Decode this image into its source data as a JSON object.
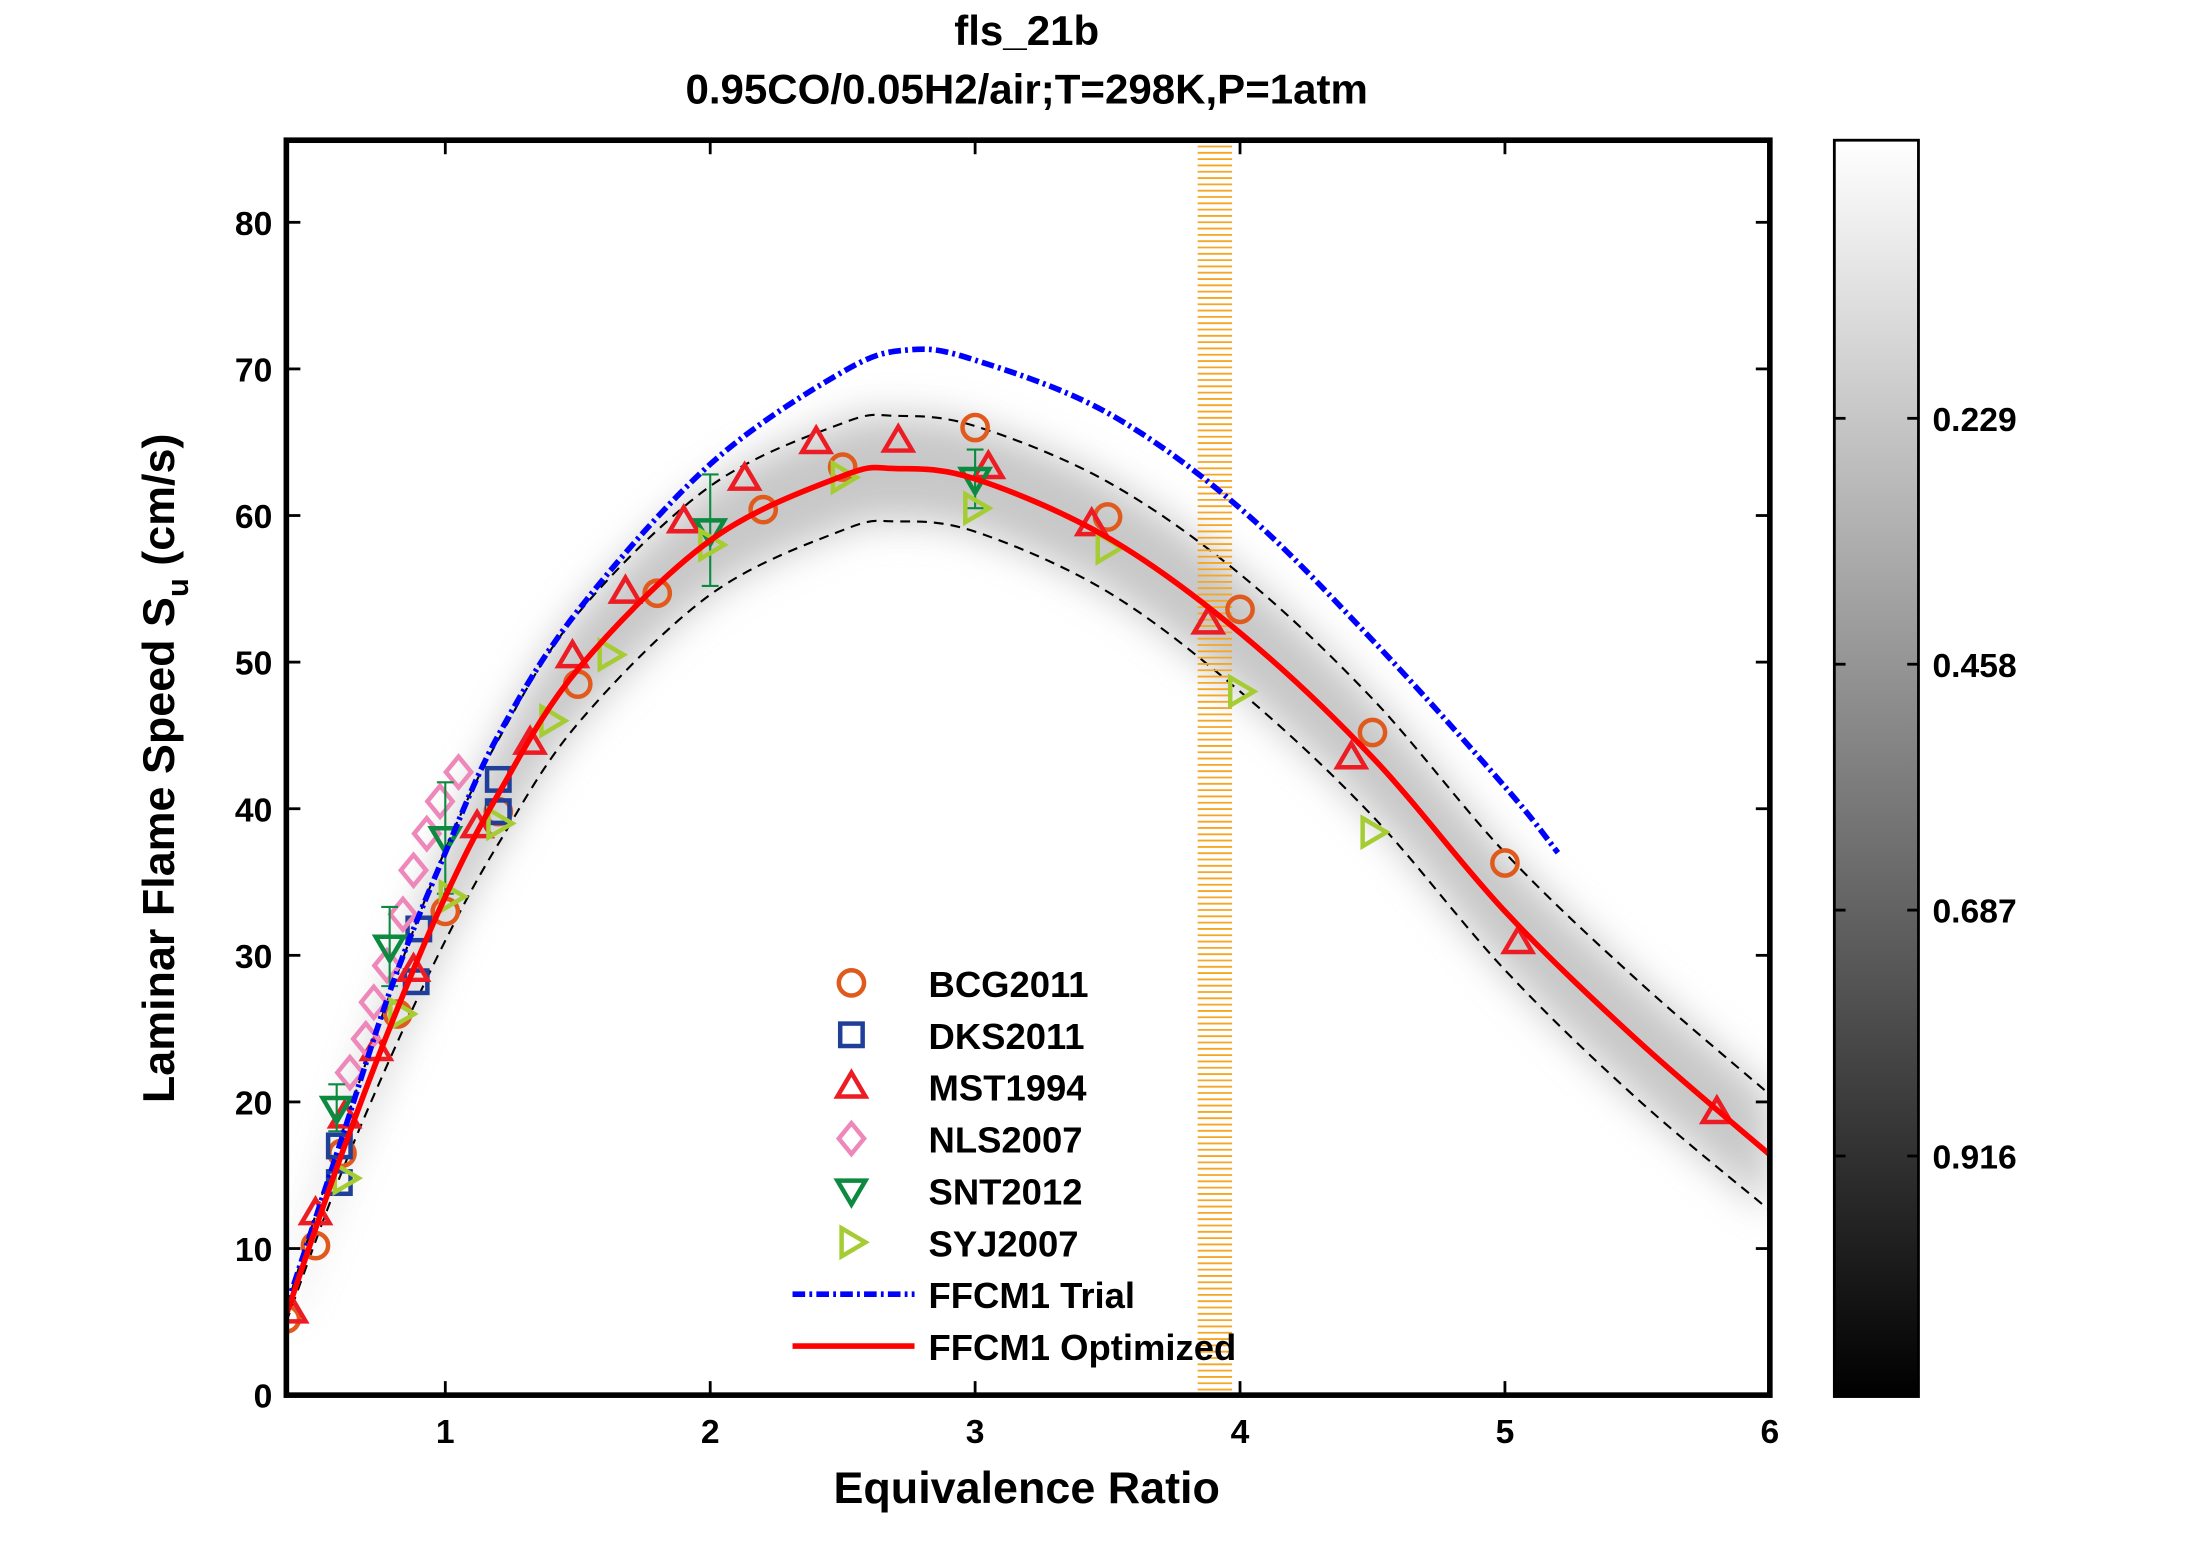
{
  "chart_data": {
    "type": "scatter",
    "title": "fls_21b",
    "subtitle": "0.95CO/0.05H2/air;T=298K,P=1atm",
    "xlabel": "Equivalence Ratio",
    "ylabel": "Laminar Flame Speed S",
    "ylabel_subscript": "u",
    "ylabel_units": " (cm/s)",
    "xlim": [
      0.4,
      6
    ],
    "ylim": [
      0,
      85.6
    ],
    "xticks": [
      1,
      2,
      3,
      4,
      5,
      6
    ],
    "yticks": [
      0,
      10,
      20,
      30,
      40,
      50,
      60,
      70,
      80
    ],
    "grid": false,
    "legend_placement": "bottom-center",
    "highlight_band_x": [
      3.84,
      3.97
    ],
    "highlight_band_color": "#f5a623",
    "colorbar": {
      "range": [
        -0.03,
        1.14
      ],
      "ticks": [
        "0.229",
        "0.458",
        "0.687",
        "0.916"
      ],
      "tick_values": [
        0.229,
        0.458,
        0.687,
        0.916
      ],
      "colormap": "gray-reversed"
    },
    "series": [
      {
        "name": "BCG2011",
        "marker": "circle",
        "color": "#e05a1e",
        "points": [
          [
            0.4,
            5.2
          ],
          [
            0.51,
            10.2
          ],
          [
            0.61,
            16.5
          ],
          [
            0.82,
            26
          ],
          [
            1.0,
            33
          ],
          [
            1.2,
            39.8
          ],
          [
            1.5,
            48.5
          ],
          [
            1.8,
            54.7
          ],
          [
            2.2,
            60.4
          ],
          [
            2.5,
            63.3
          ],
          [
            3.0,
            66
          ],
          [
            3.5,
            59.9
          ],
          [
            4.0,
            53.6
          ],
          [
            4.5,
            45.2
          ],
          [
            5.0,
            36.3
          ]
        ]
      },
      {
        "name": "DKS2011",
        "marker": "square",
        "color": "#1f3f99",
        "points": [
          [
            0.6,
            14.5
          ],
          [
            0.6,
            17
          ],
          [
            0.89,
            28.2
          ],
          [
            0.9,
            31.8
          ],
          [
            1.2,
            39.8
          ],
          [
            1.2,
            42
          ]
        ]
      },
      {
        "name": "MST1994",
        "marker": "triangle-up",
        "color": "#ec1c24",
        "points": [
          [
            0.42,
            5.7
          ],
          [
            0.51,
            12.4
          ],
          [
            0.62,
            19
          ],
          [
            0.74,
            23.6
          ],
          [
            0.88,
            29
          ],
          [
            1.12,
            38.8
          ],
          [
            1.32,
            44.5
          ],
          [
            1.48,
            50.4
          ],
          [
            1.68,
            54.8
          ],
          [
            1.9,
            59.6
          ],
          [
            2.13,
            62.5
          ],
          [
            2.4,
            65
          ],
          [
            2.71,
            65.1
          ],
          [
            3.05,
            63.3
          ],
          [
            3.44,
            59.4
          ],
          [
            3.88,
            52.7
          ],
          [
            4.42,
            43.5
          ],
          [
            5.05,
            30.9
          ],
          [
            5.8,
            19.3
          ]
        ]
      },
      {
        "name": "NLS2007",
        "marker": "diamond",
        "color": "#ee88bb",
        "points": [
          [
            0.64,
            22
          ],
          [
            0.7,
            24.3
          ],
          [
            0.73,
            26.8
          ],
          [
            0.78,
            29.3
          ],
          [
            0.84,
            32.8
          ],
          [
            0.88,
            35.8
          ],
          [
            0.93,
            38.3
          ],
          [
            0.98,
            40.5
          ],
          [
            1.05,
            42.5
          ]
        ]
      },
      {
        "name": "SNT2012",
        "marker": "triangle-down",
        "color": "#0b8a40",
        "points": [
          [
            0.59,
            19.6
          ],
          [
            0.79,
            30.6
          ],
          [
            1.0,
            38
          ],
          [
            2.0,
            59
          ],
          [
            3.0,
            62.5
          ]
        ],
        "errors": [
          1.6,
          2.7,
          3.8,
          3.8,
          2.0
        ]
      },
      {
        "name": "SYJ2007",
        "marker": "triangle-right",
        "color": "#a6cc33",
        "points": [
          [
            0.62,
            14.8
          ],
          [
            0.83,
            26
          ],
          [
            1.02,
            34
          ],
          [
            1.2,
            39
          ],
          [
            1.4,
            46
          ],
          [
            1.62,
            50.5
          ],
          [
            2.0,
            58
          ],
          [
            2.5,
            62.6
          ],
          [
            3.0,
            60.5
          ],
          [
            3.5,
            57.8
          ],
          [
            4.0,
            48
          ],
          [
            4.5,
            38.4
          ]
        ]
      }
    ],
    "lines": [
      {
        "name": "FFCM1 Trial",
        "style": "dash-dot",
        "color": "#0000ff",
        "points": [
          [
            0.4,
            6
          ],
          [
            0.6,
            17
          ],
          [
            0.8,
            28
          ],
          [
            1,
            37
          ],
          [
            1.2,
            45
          ],
          [
            1.5,
            53.5
          ],
          [
            2,
            63.5
          ],
          [
            2.5,
            69.8
          ],
          [
            2.75,
            71.3
          ],
          [
            3,
            70.6
          ],
          [
            3.5,
            67
          ],
          [
            4,
            60.5
          ],
          [
            4.5,
            51.5
          ],
          [
            5,
            41.5
          ],
          [
            5.2,
            37
          ]
        ]
      },
      {
        "name": "FFCM1 Optimized",
        "style": "solid",
        "color": "#ff0000",
        "points": [
          [
            0.4,
            5.5
          ],
          [
            0.6,
            16
          ],
          [
            0.8,
            25.5
          ],
          [
            1,
            34
          ],
          [
            1.2,
            41
          ],
          [
            1.5,
            49.5
          ],
          [
            2,
            58.3
          ],
          [
            2.5,
            62.7
          ],
          [
            2.7,
            63.2
          ],
          [
            3,
            62.5
          ],
          [
            3.5,
            58.5
          ],
          [
            4,
            52
          ],
          [
            4.5,
            43.5
          ],
          [
            5,
            33
          ],
          [
            5.5,
            24.2
          ],
          [
            6,
            16.4
          ]
        ]
      }
    ],
    "uncertainty_band": {
      "style": "dashed",
      "color": "#000000",
      "upper": [
        [
          0.4,
          6
        ],
        [
          0.6,
          17.3
        ],
        [
          0.8,
          27.8
        ],
        [
          1,
          37.2
        ],
        [
          1.2,
          44.7
        ],
        [
          1.5,
          53.3
        ],
        [
          2,
          62
        ],
        [
          2.5,
          66.3
        ],
        [
          2.7,
          66.8
        ],
        [
          3,
          66.1
        ],
        [
          3.5,
          62.3
        ],
        [
          4,
          56
        ],
        [
          4.5,
          47.5
        ],
        [
          5,
          37
        ],
        [
          5.5,
          28.3
        ],
        [
          6,
          20.5
        ]
      ],
      "lower": [
        [
          0.4,
          5
        ],
        [
          0.6,
          14.8
        ],
        [
          0.8,
          23.3
        ],
        [
          1,
          31
        ],
        [
          1.2,
          37.6
        ],
        [
          1.5,
          45.8
        ],
        [
          2,
          54.6
        ],
        [
          2.5,
          59
        ],
        [
          2.7,
          59.6
        ],
        [
          3,
          58.9
        ],
        [
          3.5,
          54.8
        ],
        [
          4,
          48
        ],
        [
          4.5,
          39.5
        ],
        [
          5,
          29
        ],
        [
          5.5,
          20.2
        ],
        [
          6,
          12.6
        ]
      ]
    }
  }
}
